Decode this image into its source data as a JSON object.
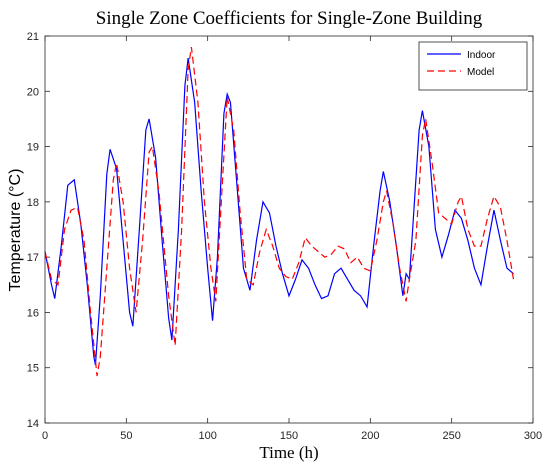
{
  "chart_data": {
    "type": "line",
    "title": "Single Zone Coefficients for Single-Zone Building",
    "xlabel": "Time (h)",
    "ylabel": "Temperature (°C)",
    "xlim": [
      0,
      300
    ],
    "ylim": [
      14,
      21
    ],
    "xticks": [
      0,
      50,
      100,
      150,
      200,
      250,
      300
    ],
    "yticks": [
      14,
      15,
      16,
      17,
      18,
      19,
      20,
      21
    ],
    "legend": "upper right",
    "series": [
      {
        "name": "Indoor",
        "color": "#0000ff",
        "dash": "solid",
        "x": [
          0,
          4,
          6,
          10,
          14,
          18,
          22,
          26,
          30,
          31,
          34,
          38,
          40,
          44,
          48,
          52,
          54,
          58,
          62,
          64,
          68,
          72,
          76,
          78,
          82,
          86,
          88,
          92,
          96,
          100,
          103,
          106,
          110,
          112,
          114,
          118,
          122,
          126,
          130,
          134,
          138,
          142,
          146,
          150,
          154,
          158,
          162,
          166,
          170,
          174,
          178,
          182,
          186,
          190,
          194,
          198,
          202,
          206,
          208,
          212,
          216,
          220,
          222,
          224,
          226,
          230,
          232,
          236,
          240,
          244,
          248,
          252,
          256,
          260,
          264,
          268,
          272,
          276,
          280,
          284,
          288
        ],
        "values": [
          17.1,
          16.5,
          16.25,
          17.2,
          18.3,
          18.4,
          17.6,
          16.5,
          15.2,
          15.05,
          16.3,
          18.5,
          18.95,
          18.6,
          17.3,
          16.0,
          15.75,
          17.5,
          19.3,
          19.5,
          18.8,
          17.3,
          15.9,
          15.5,
          17.5,
          20.1,
          20.6,
          19.8,
          18.2,
          16.8,
          15.85,
          17.0,
          19.6,
          19.95,
          19.8,
          18.3,
          16.8,
          16.4,
          17.3,
          18.0,
          17.8,
          17.2,
          16.7,
          16.3,
          16.6,
          16.95,
          16.8,
          16.5,
          16.25,
          16.3,
          16.7,
          16.8,
          16.6,
          16.4,
          16.3,
          16.1,
          17.2,
          18.2,
          18.55,
          18.0,
          17.2,
          16.3,
          16.7,
          16.6,
          17.5,
          19.3,
          19.65,
          19.0,
          17.5,
          17.0,
          17.4,
          17.85,
          17.7,
          17.3,
          16.8,
          16.5,
          17.2,
          17.85,
          17.3,
          16.8,
          16.7
        ]
      },
      {
        "name": "Model",
        "color": "#ff0000",
        "dash": "dashed",
        "x": [
          0,
          4,
          8,
          12,
          16,
          20,
          24,
          28,
          32,
          34,
          38,
          42,
          44,
          48,
          52,
          56,
          60,
          64,
          66,
          70,
          76,
          80,
          84,
          88,
          90,
          94,
          98,
          102,
          105,
          108,
          112,
          116,
          120,
          124,
          128,
          132,
          136,
          140,
          144,
          148,
          152,
          156,
          160,
          164,
          168,
          172,
          176,
          180,
          184,
          188,
          192,
          196,
          200,
          204,
          208,
          210,
          214,
          218,
          222,
          224,
          228,
          232,
          234,
          238,
          242,
          246,
          250,
          254,
          256,
          260,
          264,
          268,
          272,
          276,
          280,
          284,
          288
        ],
        "values": [
          17.1,
          16.6,
          16.5,
          17.5,
          17.85,
          17.9,
          17.3,
          16.0,
          14.85,
          15.2,
          16.8,
          18.4,
          18.7,
          18.0,
          16.8,
          16.0,
          17.3,
          18.9,
          19.0,
          18.2,
          16.3,
          15.4,
          17.5,
          20.4,
          20.8,
          19.8,
          18.0,
          16.8,
          16.2,
          17.8,
          19.9,
          19.3,
          17.8,
          16.6,
          16.5,
          17.1,
          17.5,
          17.2,
          16.8,
          16.65,
          16.6,
          16.9,
          17.35,
          17.2,
          17.1,
          17.0,
          17.05,
          17.2,
          17.15,
          16.9,
          17.0,
          16.8,
          16.75,
          17.3,
          18.0,
          18.2,
          17.6,
          16.8,
          16.2,
          16.6,
          17.3,
          19.2,
          19.5,
          18.7,
          17.8,
          17.7,
          17.6,
          18.0,
          18.1,
          17.5,
          17.2,
          17.2,
          17.7,
          18.1,
          17.9,
          17.3,
          16.6
        ]
      }
    ]
  }
}
